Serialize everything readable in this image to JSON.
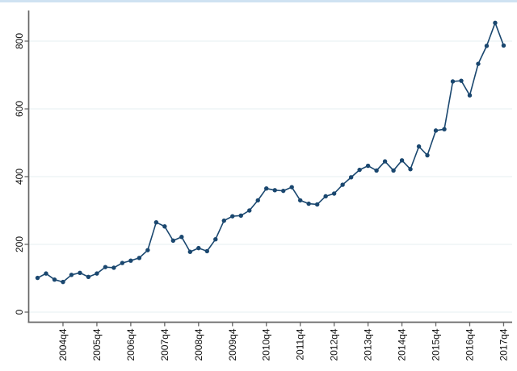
{
  "window": {
    "top_strip_color": "#cfe2f2"
  },
  "chart_data": {
    "type": "line",
    "title": "",
    "xlabel": "",
    "ylabel": "",
    "x": [
      "2004q1",
      "2004q2",
      "2004q3",
      "2004q4",
      "2005q1",
      "2005q2",
      "2005q3",
      "2005q4",
      "2006q1",
      "2006q2",
      "2006q3",
      "2006q4",
      "2007q1",
      "2007q2",
      "2007q3",
      "2007q4",
      "2008q1",
      "2008q2",
      "2008q3",
      "2008q4",
      "2009q1",
      "2009q2",
      "2009q3",
      "2009q4",
      "2010q1",
      "2010q2",
      "2010q3",
      "2010q4",
      "2011q1",
      "2011q2",
      "2011q3",
      "2011q4",
      "2012q1",
      "2012q2",
      "2012q3",
      "2012q4",
      "2013q1",
      "2013q2",
      "2013q3",
      "2013q4",
      "2014q1",
      "2014q2",
      "2014q3",
      "2014q4",
      "2015q1",
      "2015q2",
      "2015q3",
      "2015q4",
      "2016q1",
      "2016q2",
      "2016q3",
      "2016q4",
      "2017q1",
      "2017q2",
      "2017q3",
      "2017q4"
    ],
    "values": [
      101,
      114,
      96,
      89,
      110,
      116,
      104,
      114,
      133,
      131,
      145,
      152,
      160,
      183,
      265,
      253,
      211,
      222,
      178,
      189,
      180,
      215,
      270,
      283,
      285,
      300,
      330,
      365,
      360,
      358,
      369,
      330,
      320,
      318,
      342,
      350,
      376,
      398,
      420,
      432,
      418,
      445,
      418,
      448,
      422,
      489,
      463,
      536,
      540,
      681,
      683,
      640,
      733,
      786,
      854,
      787
    ],
    "x_tick_labels": [
      "2004q4",
      "2005q4",
      "2006q4",
      "2007q4",
      "2008q4",
      "2009q4",
      "2010q4",
      "2011q4",
      "2012q4",
      "2013q4",
      "2014q4",
      "2015q4",
      "2016q4",
      "2017q4"
    ],
    "y_tick_labels": [
      "0",
      "200",
      "400",
      "600",
      "800"
    ],
    "y_ticks": [
      0,
      200,
      400,
      600,
      800
    ],
    "ylim": [
      0,
      880
    ],
    "grid": "horizontal",
    "legend": "none",
    "line_color": "#1a476f",
    "marker_color": "#1a476f",
    "gridline_color": "#e9f2f3",
    "axis_color": "#666666",
    "label_color": "#111111"
  }
}
